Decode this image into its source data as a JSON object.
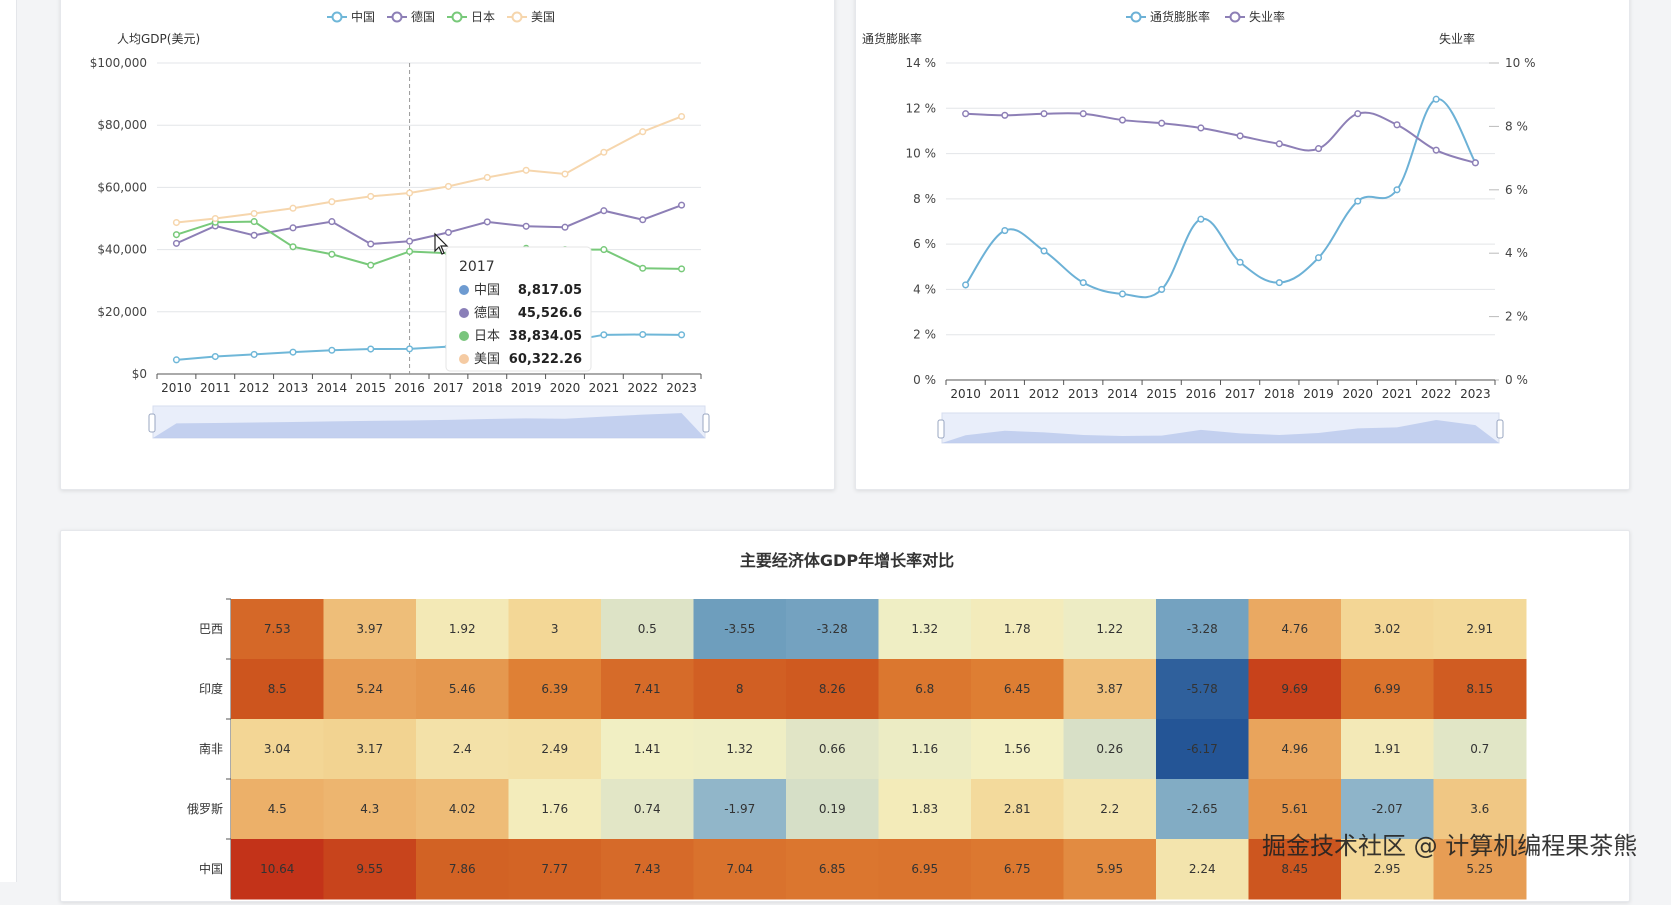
{
  "chart_data": [
    {
      "type": "line",
      "ylabel": "人均GDP(美元)",
      "x": [
        "2010",
        "2011",
        "2012",
        "2013",
        "2014",
        "2015",
        "2016",
        "2017",
        "2018",
        "2019",
        "2020",
        "2021",
        "2022",
        "2023"
      ],
      "ylim": [
        0,
        100000
      ],
      "yticks": [
        "$0",
        "$20,000",
        "$40,000",
        "$60,000",
        "$80,000",
        "$100,000"
      ],
      "series": [
        {
          "name": "中国",
          "color": "#6fb7d8",
          "values": [
            4550,
            5620,
            6300,
            7020,
            7640,
            8030,
            8080,
            8817,
            9900,
            10200,
            10400,
            12600,
            12700,
            12600
          ]
        },
        {
          "name": "德国",
          "color": "#8d7fb6",
          "values": [
            42000,
            47600,
            44600,
            47000,
            49000,
            41800,
            42700,
            45527,
            48900,
            47500,
            47200,
            52500,
            49600,
            54300
          ]
        },
        {
          "name": "日本",
          "color": "#78c97a",
          "values": [
            44800,
            48800,
            49000,
            40900,
            38500,
            35000,
            39400,
            38834,
            39800,
            40400,
            40000,
            40000,
            34000,
            33800
          ]
        },
        {
          "name": "美国",
          "color": "#f6d6ad",
          "values": [
            48700,
            50000,
            51600,
            53300,
            55400,
            57100,
            58200,
            60322,
            63200,
            65500,
            64300,
            71300,
            77900,
            82800
          ]
        }
      ],
      "tooltip": {
        "title": "2017",
        "rows": [
          {
            "name": "中国",
            "value": "8,817.05",
            "color": "#6e9bd1"
          },
          {
            "name": "德国",
            "value": "45,526.6",
            "color": "#8a7fb8"
          },
          {
            "name": "日本",
            "value": "38,834.05",
            "color": "#79c57d"
          },
          {
            "name": "美国",
            "value": "60,322.26",
            "color": "#f5cba3"
          }
        ]
      },
      "pointer_category": "2016"
    },
    {
      "type": "line",
      "x": [
        "2010",
        "2011",
        "2012",
        "2013",
        "2014",
        "2015",
        "2016",
        "2017",
        "2018",
        "2019",
        "2020",
        "2021",
        "2022",
        "2023"
      ],
      "ylabel_left": "通货膨胀率",
      "ylabel_right": "失业率",
      "ylim_left": [
        0,
        14
      ],
      "ylim_right": [
        0,
        10
      ],
      "yticks_left": [
        "0 %",
        "2 %",
        "4 %",
        "6 %",
        "8 %",
        "10 %",
        "12 %",
        "14 %"
      ],
      "yticks_right": [
        "0 %",
        "2 %",
        "4 %",
        "6 %",
        "8 %",
        "10 %"
      ],
      "series": [
        {
          "name": "通货膨胀率",
          "color": "#6cb1d6",
          "axis": "left",
          "values": [
            4.2,
            6.6,
            5.7,
            4.3,
            3.8,
            4.0,
            7.1,
            5.2,
            4.3,
            5.4,
            7.9,
            8.4,
            12.4,
            9.6
          ]
        },
        {
          "name": "失业率",
          "color": "#8d7fb6",
          "axis": "right",
          "values": [
            8.4,
            8.35,
            8.4,
            8.4,
            8.2,
            8.1,
            7.95,
            7.7,
            7.45,
            7.3,
            8.4,
            8.05,
            7.25,
            6.85
          ]
        }
      ]
    },
    {
      "type": "heatmap",
      "title": "主要经济体GDP年增长率对比",
      "rows": [
        "巴西",
        "印度",
        "南非",
        "俄罗斯",
        "中国"
      ],
      "values": [
        [
          7.53,
          3.97,
          1.92,
          3,
          0.5,
          -3.55,
          -3.28,
          1.32,
          1.78,
          1.22,
          -3.28,
          4.76,
          3.02,
          2.91
        ],
        [
          8.5,
          5.24,
          5.46,
          6.39,
          7.41,
          8,
          8.26,
          6.8,
          6.45,
          3.87,
          -5.78,
          9.69,
          6.99,
          8.15
        ],
        [
          3.04,
          3.17,
          2.4,
          2.49,
          1.41,
          1.32,
          0.66,
          1.16,
          1.56,
          0.26,
          -6.17,
          4.96,
          1.91,
          0.7
        ],
        [
          4.5,
          4.3,
          4.02,
          1.76,
          0.74,
          -1.97,
          0.19,
          1.83,
          2.81,
          2.2,
          -2.65,
          5.61,
          -2.07,
          3.6
        ],
        [
          10.64,
          9.55,
          7.86,
          7.77,
          7.43,
          7.04,
          6.85,
          6.95,
          6.75,
          5.95,
          2.24,
          8.45,
          2.95,
          5.25
        ]
      ],
      "visual_range": [
        -6.17,
        10.64
      ]
    }
  ],
  "watermark": "掘金技术社区 @ 计算机编程果茶熊"
}
